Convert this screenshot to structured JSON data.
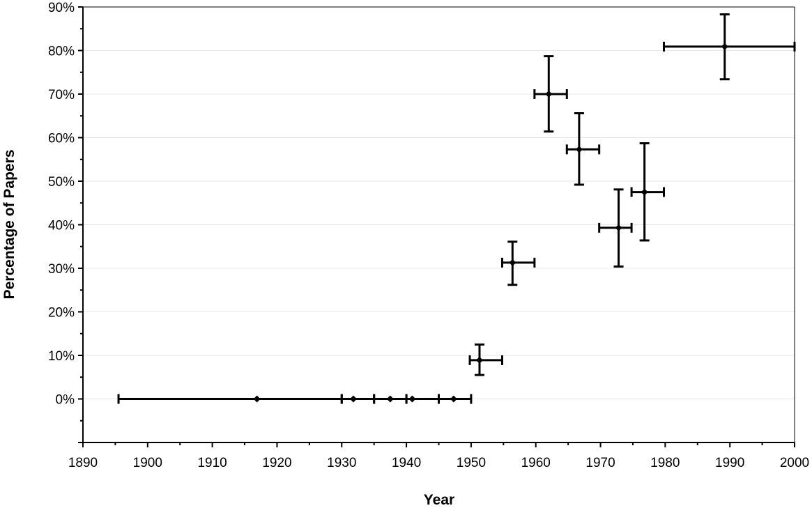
{
  "chart_data": {
    "type": "scatter",
    "title": "",
    "xlabel": "Year",
    "ylabel": "Percentage of Papers",
    "xlim": [
      1890,
      2000
    ],
    "ylim": [
      -0.1,
      0.9
    ],
    "x_ticks": [
      1890,
      1900,
      1910,
      1920,
      1930,
      1940,
      1950,
      1960,
      1970,
      1980,
      1990,
      2000
    ],
    "y_ticks": [
      0,
      0.1,
      0.2,
      0.3,
      0.4,
      0.5,
      0.6,
      0.7,
      0.8,
      0.9
    ],
    "x_tick_labels": [
      "1890",
      "1900",
      "1910",
      "1920",
      "1930",
      "1940",
      "1950",
      "1960",
      "1970",
      "1980",
      "1990",
      "2000"
    ],
    "y_tick_labels": [
      "0%",
      "10%",
      "20%",
      "30%",
      "40%",
      "50%",
      "60%",
      "70%",
      "80%",
      "90%"
    ],
    "grid": "horizontal",
    "legend": "none",
    "points": [
      {
        "x": 1916.9,
        "y": 0.0,
        "x_err": [
          1895.5,
          1930.0
        ],
        "y_err": null
      },
      {
        "x": 1931.8,
        "y": 0.0,
        "x_err": [
          1930.0,
          1935.0
        ],
        "y_err": null
      },
      {
        "x": 1937.5,
        "y": 0.0,
        "x_err": [
          1935.0,
          1940.0
        ],
        "y_err": null
      },
      {
        "x": 1940.9,
        "y": 0.0,
        "x_err": [
          1940.0,
          1945.0
        ],
        "y_err": null
      },
      {
        "x": 1947.3,
        "y": 0.0,
        "x_err": [
          1945.0,
          1950.0
        ],
        "y_err": null
      },
      {
        "x": 1951.3,
        "y": 0.089,
        "x_err": [
          1949.8,
          1954.8
        ],
        "y_err": [
          0.055,
          0.125
        ]
      },
      {
        "x": 1956.4,
        "y": 0.313,
        "x_err": [
          1954.8,
          1959.8
        ],
        "y_err": [
          0.262,
          0.361
        ]
      },
      {
        "x": 1962.0,
        "y": 0.7,
        "x_err": [
          1959.8,
          1964.8
        ],
        "y_err": [
          0.614,
          0.787
        ]
      },
      {
        "x": 1966.7,
        "y": 0.573,
        "x_err": [
          1964.8,
          1969.8
        ],
        "y_err": [
          0.492,
          0.656
        ]
      },
      {
        "x": 1972.8,
        "y": 0.393,
        "x_err": [
          1969.8,
          1974.8
        ],
        "y_err": [
          0.304,
          0.481
        ]
      },
      {
        "x": 1976.8,
        "y": 0.475,
        "x_err": [
          1974.8,
          1979.8
        ],
        "y_err": [
          0.364,
          0.587
        ]
      },
      {
        "x": 1989.2,
        "y": 0.809,
        "x_err": [
          1979.8,
          2000.0
        ],
        "y_err": [
          0.734,
          0.883
        ]
      }
    ],
    "colors": {
      "marks": "#000000",
      "grid": "#e6e6e6",
      "axis": "#000000"
    }
  }
}
